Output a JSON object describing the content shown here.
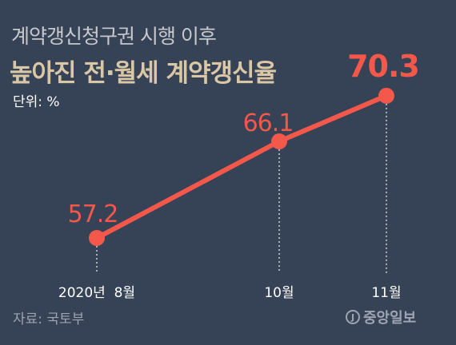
{
  "header": {
    "title_line1": "계약갱신청구권 시행 이후",
    "title_line2": "높아진 전·월세 계약갱신율",
    "unit": "단위: %"
  },
  "footer": {
    "source": "자료: 국토부",
    "logo_text": "중앙일보",
    "logo_mark": "J"
  },
  "chart_data": {
    "type": "line",
    "categories": [
      "2020년  8월",
      "10월",
      "11월"
    ],
    "values": [
      57.2,
      66.1,
      70.3
    ],
    "value_labels": [
      "57.2",
      "66.1",
      "70.3"
    ],
    "title": "높아진 전·월세 계약갱신율",
    "xlabel": "",
    "ylabel": "",
    "grid": false,
    "colors": {
      "line": "#f4584a",
      "guide": "#cfd3d9",
      "tick_text": "#ffffff"
    }
  }
}
